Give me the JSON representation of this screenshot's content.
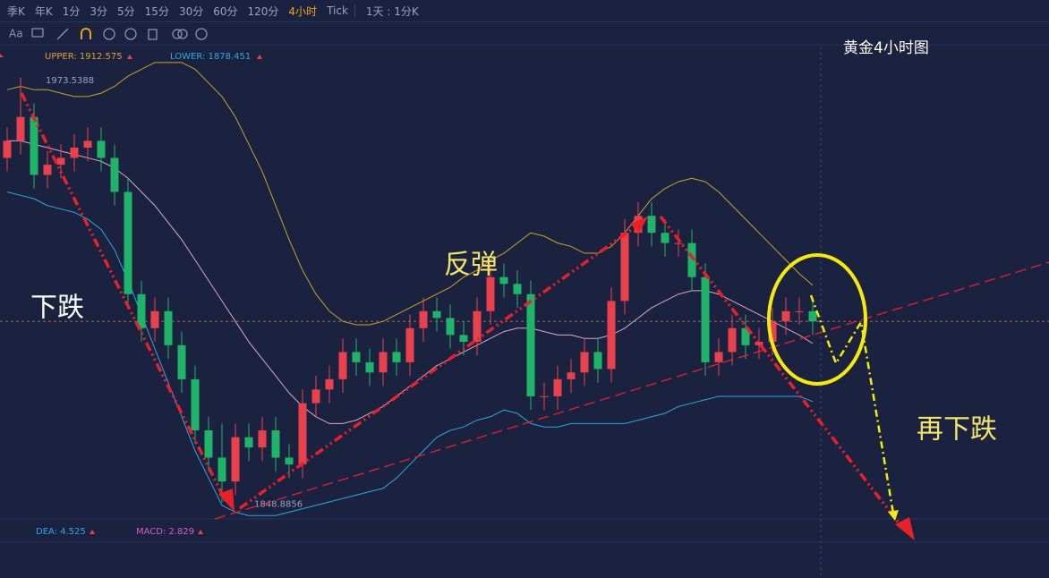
{
  "toolbar": {
    "periods": [
      "季K",
      "年K",
      "1分",
      "3分",
      "5分",
      "15分",
      "30分",
      "60分",
      "120分",
      "4小时",
      "Tick"
    ],
    "active": 9,
    "range": "1天 : 1分K",
    "text_tool": "Aa"
  },
  "chart_data": {
    "type": "candlestick",
    "title": "黄金4小时图",
    "indicator_labels": [
      "UPPER: 1912.575",
      "LOWER: 1878.451"
    ],
    "macd_labels": [
      "DEA: 4.525",
      "MACD: 2.829"
    ],
    "annotations": [
      "下跌",
      "反弹",
      "再下跌"
    ],
    "up_color": "#e8414d",
    "down_color": "#20b46a",
    "ylim": [
      1844,
      1984
    ],
    "price_line": 1902,
    "open": [
      1950,
      1955,
      1962,
      1945,
      1948,
      1950,
      1953,
      1955,
      1950,
      1940,
      1910,
      1900,
      1905,
      1895,
      1885,
      1870,
      1862,
      1855,
      1868,
      1865,
      1870,
      1862,
      1860,
      1878,
      1882,
      1885,
      1893,
      1890,
      1887,
      1893,
      1890,
      1900,
      1905,
      1903,
      1898,
      1896,
      1905,
      1915,
      1913,
      1910,
      1880,
      1880,
      1885,
      1887,
      1893,
      1888,
      1908,
      1928,
      1933,
      1928,
      1925,
      1925,
      1915,
      1890,
      1893,
      1900,
      1895,
      1896,
      1902,
      1905,
      1905
    ],
    "high": [
      1959,
      1973.5388,
      1966,
      1952,
      1954,
      1957,
      1959,
      1959,
      1954,
      1944,
      1914,
      1909,
      1909,
      1899,
      1889,
      1874,
      1872,
      1872,
      1872,
      1874,
      1874,
      1866,
      1882,
      1886,
      1889,
      1897,
      1897,
      1894,
      1897,
      1897,
      1904,
      1909,
      1909,
      1907,
      1902,
      1909,
      1919,
      1919,
      1917,
      1914,
      1884,
      1889,
      1891,
      1897,
      1897,
      1912,
      1932,
      1937,
      1937,
      1932,
      1929,
      1929,
      1919,
      1897,
      1904,
      1904,
      1900,
      1906,
      1909,
      1909,
      1909
    ],
    "low": [
      1946,
      1951,
      1941,
      1941,
      1944,
      1946,
      1949,
      1946,
      1936,
      1906,
      1896,
      1896,
      1891,
      1881,
      1866,
      1858,
      1848.8856,
      1851,
      1861,
      1861,
      1858,
      1856,
      1856,
      1874,
      1878,
      1881,
      1886,
      1883,
      1883,
      1886,
      1886,
      1896,
      1899,
      1894,
      1892,
      1892,
      1901,
      1909,
      1906,
      1876,
      1876,
      1876,
      1881,
      1883,
      1884,
      1884,
      1904,
      1924,
      1924,
      1921,
      1921,
      1911,
      1886,
      1886,
      1889,
      1891,
      1891,
      1892,
      1898,
      1901,
      1898
    ],
    "close": [
      1955,
      1962,
      1945,
      1948,
      1950,
      1953,
      1955,
      1950,
      1940,
      1910,
      1900,
      1905,
      1895,
      1885,
      1870,
      1862,
      1855,
      1868,
      1865,
      1870,
      1862,
      1860,
      1878,
      1882,
      1885,
      1893,
      1890,
      1887,
      1893,
      1890,
      1900,
      1905,
      1903,
      1898,
      1896,
      1905,
      1915,
      1913,
      1910,
      1880,
      1880,
      1885,
      1887,
      1893,
      1888,
      1908,
      1928,
      1933,
      1928,
      1925,
      1925,
      1915,
      1890,
      1893,
      1900,
      1895,
      1896,
      1902,
      1905,
      1905,
      1902
    ],
    "bands": [
      {
        "color": "#c9a227",
        "values": [
          1970,
          1971,
          1970,
          1970,
          1969,
          1968,
          1968,
          1969,
          1971,
          1974,
          1976,
          1978,
          1978,
          1978,
          1976,
          1972,
          1968,
          1962,
          1954,
          1946,
          1936,
          1926,
          1917,
          1910,
          1905,
          1902,
          1901,
          1901,
          1902,
          1904,
          1906,
          1908,
          1910,
          1912,
          1915,
          1917,
          1920,
          1922,
          1925,
          1928,
          1927,
          1925,
          1924,
          1922,
          1922,
          1924,
          1928,
          1933,
          1938,
          1941,
          1943,
          1944,
          1943,
          1940,
          1936,
          1932,
          1928,
          1924,
          1920,
          1916,
          1912.575
        ]
      },
      {
        "color": "#d9a6c8",
        "values": [
          1955,
          1955,
          1954,
          1953,
          1952,
          1951,
          1950,
          1949,
          1947,
          1944,
          1940,
          1936,
          1931,
          1926,
          1920,
          1914,
          1908,
          1902,
          1896,
          1891,
          1886,
          1881,
          1877,
          1874,
          1872,
          1872,
          1873,
          1875,
          1877,
          1880,
          1883,
          1886,
          1889,
          1891,
          1893,
          1895,
          1897,
          1899,
          1900,
          1900,
          1899,
          1898,
          1898,
          1897,
          1897,
          1898,
          1900,
          1903,
          1906,
          1908,
          1910,
          1911,
          1911,
          1910,
          1908,
          1906,
          1904,
          1902,
          1900,
          1898,
          1895.513
        ]
      },
      {
        "color": "#2aa8e0",
        "values": [
          1940,
          1939,
          1938,
          1936,
          1935,
          1934,
          1932,
          1929,
          1923,
          1914,
          1904,
          1894,
          1884,
          1874,
          1864,
          1856,
          1848,
          1846,
          1845,
          1845,
          1845,
          1846,
          1847,
          1848,
          1849,
          1850,
          1851,
          1852,
          1853,
          1856,
          1860,
          1864,
          1868,
          1870,
          1871,
          1873,
          1874,
          1876,
          1875,
          1872,
          1871,
          1871,
          1872,
          1872,
          1872,
          1872,
          1872,
          1873,
          1874,
          1875,
          1877,
          1878,
          1879,
          1880,
          1880,
          1880,
          1880,
          1880,
          1880,
          1880,
          1878.451
        ]
      }
    ]
  }
}
